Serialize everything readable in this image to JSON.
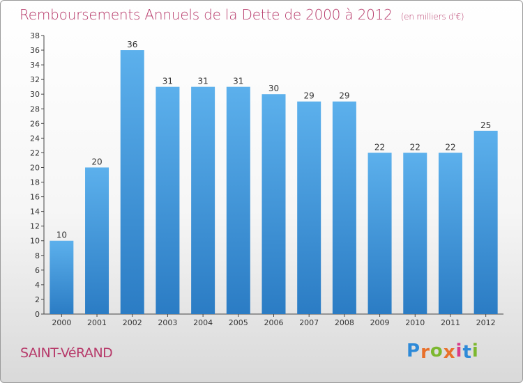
{
  "chart_data": {
    "type": "bar",
    "title": "Remboursements Annuels de la Dette de 2000 à 2012",
    "unit_note": "(en milliers d'€)",
    "categories": [
      "2000",
      "2001",
      "2002",
      "2003",
      "2004",
      "2005",
      "2006",
      "2007",
      "2008",
      "2009",
      "2010",
      "2011",
      "2012"
    ],
    "values": [
      10,
      20,
      36,
      31,
      31,
      31,
      30,
      29,
      29,
      22,
      22,
      22,
      25
    ],
    "ylim": [
      0,
      38
    ],
    "yticks": [
      0,
      2,
      4,
      6,
      8,
      10,
      12,
      14,
      16,
      18,
      20,
      22,
      24,
      26,
      28,
      30,
      32,
      34,
      36,
      38
    ],
    "grid": false,
    "bar_color": "#4a9ee0",
    "title_color": "#b73a6a"
  },
  "footer": {
    "place": "SAINT-VéRAND",
    "logo": {
      "letters": [
        "P",
        "r",
        "o",
        "x",
        "i",
        "t",
        "i"
      ],
      "colors": [
        "#2e8ad8",
        "#e8702a",
        "#7cb82f",
        "#e8702a",
        "#d93a8a",
        "#2e8ad8",
        "#7cb82f"
      ]
    }
  }
}
